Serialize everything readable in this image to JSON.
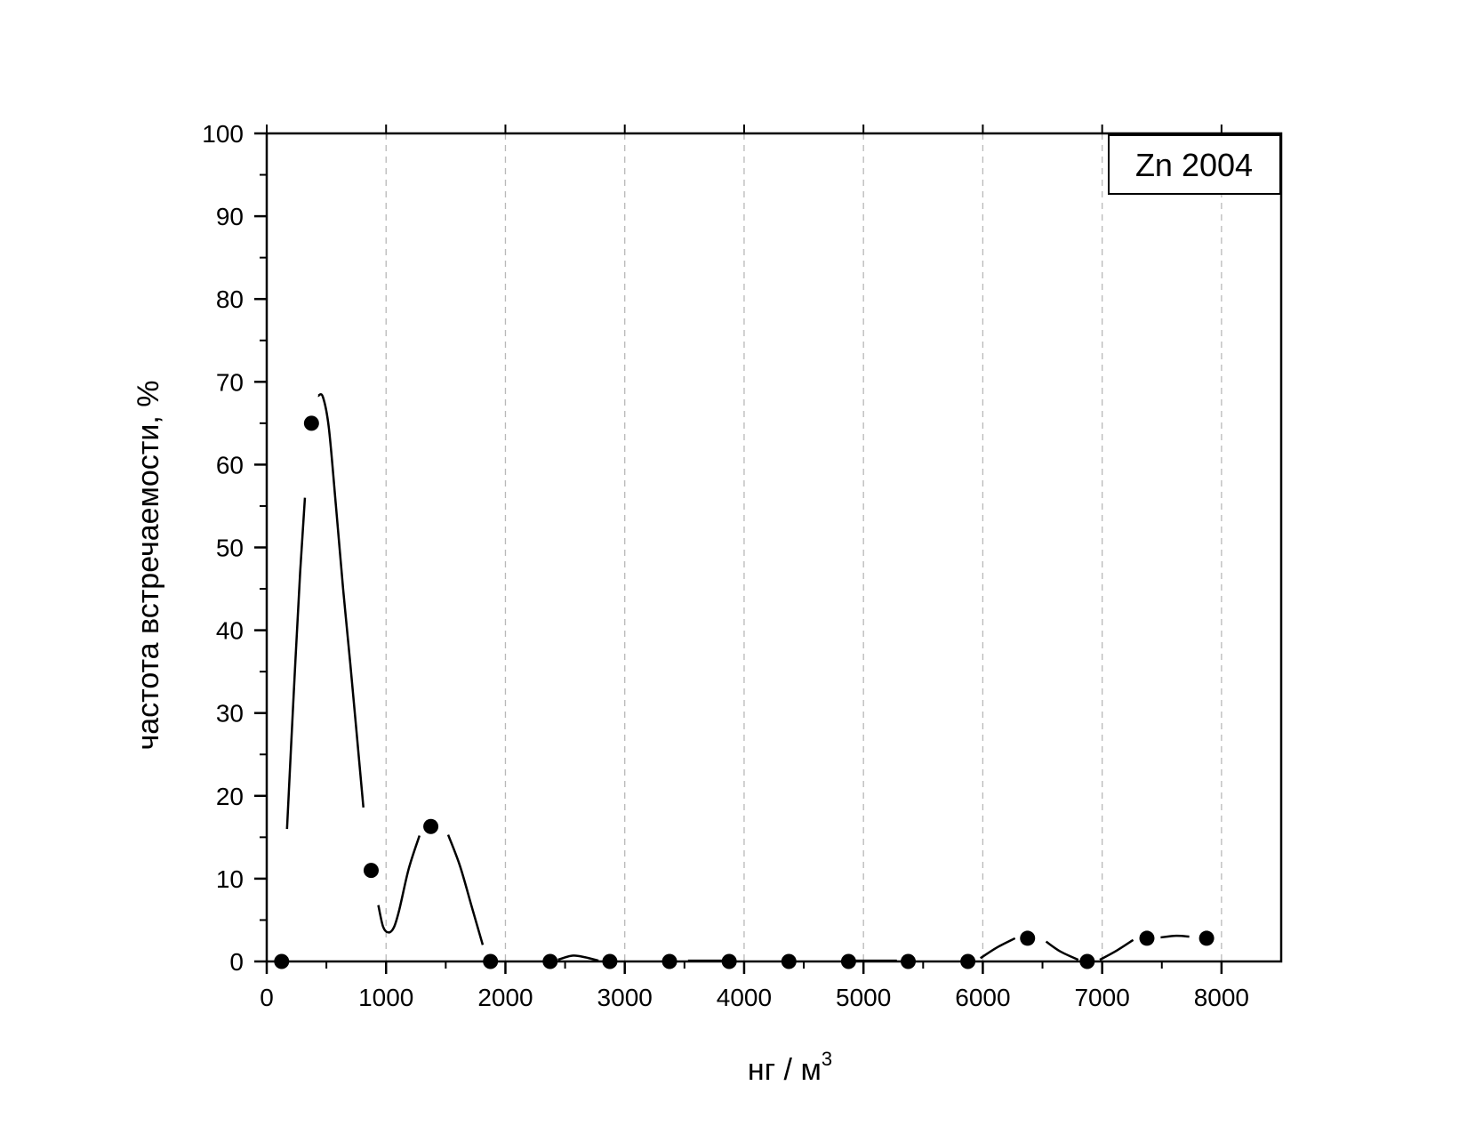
{
  "chart_data": {
    "type": "scatter",
    "title": "",
    "xlabel": "нг / м",
    "xlabel_superscript": "3",
    "ylabel": "частота встречаемости, %",
    "xlim": [
      0,
      8500
    ],
    "ylim": [
      0,
      100
    ],
    "x_ticks": [
      0,
      1000,
      2000,
      3000,
      4000,
      5000,
      6000,
      7000,
      8000
    ],
    "y_ticks": [
      0,
      10,
      20,
      30,
      40,
      50,
      60,
      70,
      80,
      90,
      100
    ],
    "grid": "vertical-dashed",
    "legend": {
      "label": "Zn 2004",
      "placement": "top-right"
    },
    "series": [
      {
        "marker": "circle",
        "x": [
          125,
          375,
          875,
          1375,
          1875,
          2375,
          2875,
          3375,
          3875,
          4375,
          4875,
          5375,
          5875,
          6375,
          6875,
          7375,
          7875
        ],
        "values": [
          0,
          65,
          11,
          16.3,
          0,
          0,
          0,
          0,
          0,
          0,
          0,
          0,
          0,
          2.8,
          0,
          2.8,
          2.8
        ]
      }
    ],
    "smooth_curve_segments": [
      {
        "x": [
          170,
          225,
          280,
          320
        ],
        "values": [
          16,
          32,
          47,
          56
        ]
      },
      {
        "x": [
          430,
          470,
          520,
          580,
          640,
          700,
          810
        ],
        "values": [
          68.3,
          68.2,
          64.5,
          55,
          45,
          36,
          18.6
        ]
      },
      {
        "x": [
          935,
          975,
          1020,
          1065,
          1110,
          1190,
          1280
        ],
        "values": [
          6.8,
          4.2,
          3.5,
          4.1,
          6.2,
          11.2,
          15.2
        ]
      },
      {
        "x": [
          1520,
          1620,
          1720,
          1810
        ],
        "values": [
          15.3,
          11.5,
          6.5,
          2
        ]
      },
      {
        "x": [
          2440,
          2560,
          2670,
          2780
        ],
        "values": [
          0.2,
          0.7,
          0.5,
          0.1
        ]
      },
      {
        "x": [
          3530,
          3700,
          3860
        ],
        "values": [
          0.1,
          0.1,
          0.1
        ]
      },
      {
        "x": [
          4930,
          5110,
          5280
        ],
        "values": [
          0.1,
          0.1,
          0.1
        ]
      },
      {
        "x": [
          5980,
          6120,
          6270
        ],
        "values": [
          0.4,
          1.7,
          2.8
        ]
      },
      {
        "x": [
          6530,
          6650,
          6800
        ],
        "values": [
          2.4,
          1.2,
          0.2
        ]
      },
      {
        "x": [
          6980,
          7120,
          7260
        ],
        "values": [
          0.2,
          1.3,
          2.6
        ]
      },
      {
        "x": [
          7490,
          7620,
          7730
        ],
        "values": [
          2.9,
          3.1,
          3
        ]
      }
    ]
  }
}
